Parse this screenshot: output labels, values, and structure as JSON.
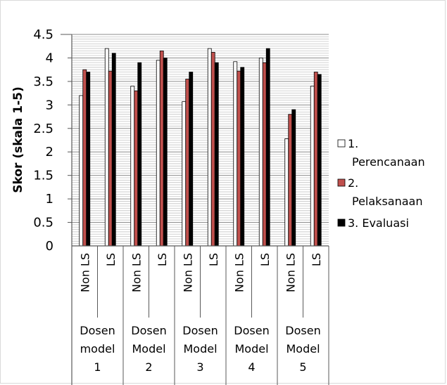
{
  "chart_data": {
    "type": "bar",
    "title": "",
    "ylabel": "Skor (skala 1-5)",
    "xlabel": "",
    "ylim": [
      0,
      4.5
    ],
    "ytick_step": 0.5,
    "yticks": [
      "0",
      "0.5",
      "1",
      "1.5",
      "2",
      "2.5",
      "3",
      "3.5",
      "4",
      "4.5"
    ],
    "grid": true,
    "legend_position": "right",
    "groups": [
      {
        "label": [
          "Dosen",
          "model",
          "1"
        ],
        "subcategories": [
          "Non LS",
          "LS"
        ]
      },
      {
        "label": [
          "Dosen",
          "Model",
          "2"
        ],
        "subcategories": [
          "Non LS",
          "LS"
        ]
      },
      {
        "label": [
          "Dosen",
          "Model",
          "3"
        ],
        "subcategories": [
          "Non LS",
          "LS"
        ]
      },
      {
        "label": [
          "Dosen",
          "Model",
          "4"
        ],
        "subcategories": [
          "Non LS",
          "LS"
        ]
      },
      {
        "label": [
          "Dosen",
          "Model",
          "5"
        ],
        "subcategories": [
          "Non LS",
          "LS"
        ]
      }
    ],
    "series": [
      {
        "name": [
          "1.",
          "Perencanaan"
        ],
        "color": "#ffffff",
        "values": [
          3.2,
          4.2,
          3.4,
          3.95,
          3.07,
          4.2,
          3.92,
          4.0,
          2.28,
          3.4
        ]
      },
      {
        "name": [
          "2.",
          "Pelaksanaan"
        ],
        "color": "#c0504d",
        "values": [
          3.75,
          3.72,
          3.3,
          4.15,
          3.55,
          4.12,
          3.72,
          3.9,
          2.8,
          3.7
        ]
      },
      {
        "name": [
          "3. Evaluasi"
        ],
        "color": "#000000",
        "values": [
          3.7,
          4.1,
          3.9,
          4.0,
          3.7,
          3.9,
          3.8,
          4.2,
          2.9,
          3.65
        ]
      }
    ]
  }
}
